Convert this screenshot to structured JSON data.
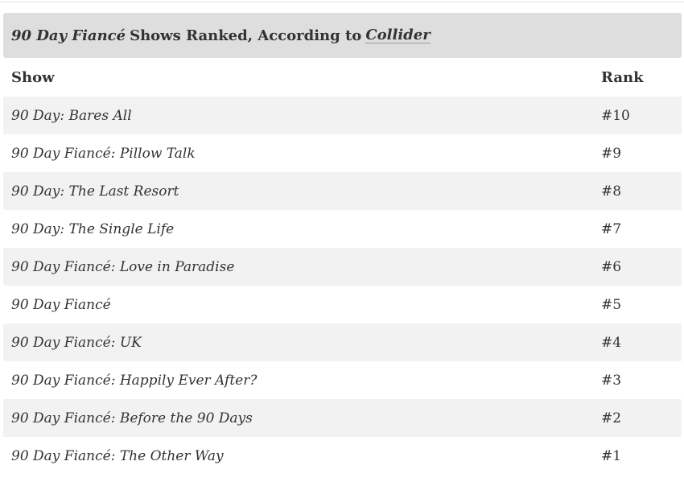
{
  "table": {
    "caption": {
      "title_italic": "90 Day Fiancé",
      "title_rest": "Shows Ranked, According to",
      "source": "Collider"
    },
    "headers": {
      "show": "Show",
      "rank": "Rank"
    },
    "rows": [
      {
        "show": "90 Day: Bares All",
        "rank": "#10"
      },
      {
        "show": "90 Day Fiancé: Pillow Talk",
        "rank": "#9"
      },
      {
        "show": "90 Day: The Last Resort",
        "rank": "#8"
      },
      {
        "show": "90 Day: The Single Life",
        "rank": "#7"
      },
      {
        "show": "90 Day Fiancé: Love in Paradise",
        "rank": "#6"
      },
      {
        "show": "90 Day Fiancé",
        "rank": "#5"
      },
      {
        "show": "90 Day Fiancé: UK",
        "rank": "#4"
      },
      {
        "show": "90 Day Fiancé: Happily Ever After?",
        "rank": "#3"
      },
      {
        "show": "90 Day Fiancé: Before the 90 Days",
        "rank": "#2"
      },
      {
        "show": "90 Day Fiancé: The Other Way",
        "rank": "#1"
      }
    ]
  }
}
